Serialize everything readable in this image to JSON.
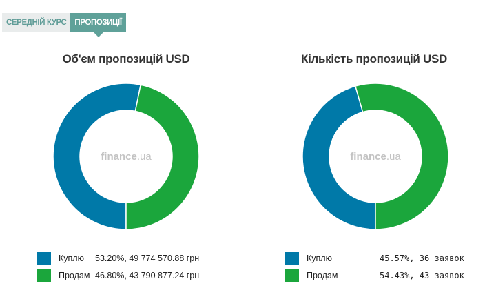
{
  "tabs": [
    {
      "label": "СЕРЕДНІЙ КУРС",
      "active": false
    },
    {
      "label": "ПРОПОЗИЦІЇ",
      "active": true
    }
  ],
  "watermark": {
    "brand": "finance",
    "tld": ".ua"
  },
  "colors": {
    "buy": "#0079a8",
    "sell": "#1ba63c",
    "tab_active": "#5fa199",
    "tab_inactive_bg": "#e9ecec",
    "watermark": "#c3c3c3"
  },
  "chart_data": [
    {
      "type": "pie",
      "title": "Об'єм пропозицій USD",
      "slices": [
        {
          "label": "Куплю",
          "percent": 53.2,
          "value_text": "53.20%, 49 774 570.88 грн",
          "color": "#0079a8"
        },
        {
          "label": "Продам",
          "percent": 46.8,
          "value_text": "46.80%, 43 790 877.24 грн",
          "color": "#1ba63c"
        }
      ]
    },
    {
      "type": "pie",
      "title": "Кількість пропозицій USD",
      "slices": [
        {
          "label": "Куплю",
          "percent": 45.57,
          "value_text": "45.57%, 36 заявок",
          "color": "#0079a8"
        },
        {
          "label": "Продам",
          "percent": 54.43,
          "value_text": "54.43%, 43 заявок",
          "color": "#1ba63c"
        }
      ]
    }
  ]
}
